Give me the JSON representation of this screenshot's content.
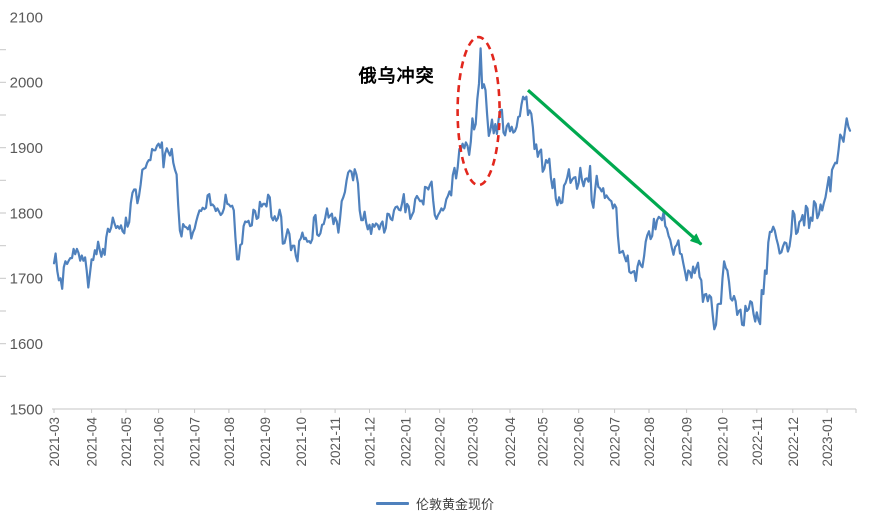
{
  "chart_data": {
    "type": "line",
    "title": "",
    "series_name": "伦敦黄金现价",
    "ylim": [
      1500,
      2100
    ],
    "y_ticks": [
      1500,
      1600,
      1700,
      1800,
      1900,
      2000,
      2100
    ],
    "x_tick_labels": [
      "2021-03",
      "2021-04",
      "2021-05",
      "2021-06",
      "2021-07",
      "2021-08",
      "2021-09",
      "2021-10",
      "2021-11",
      "2021-12",
      "2022-01",
      "2022-02",
      "2022-03",
      "2022-04",
      "2022-05",
      "2022-06",
      "2022-07",
      "2022-08",
      "2022-09",
      "2022-10",
      "2022-11",
      "2022-12",
      "2023-01"
    ],
    "line_color": "#4F81BD",
    "grid": "off",
    "legend_position": "bottom-center",
    "annotations": {
      "conflict_label": "俄乌冲突",
      "ellipse_color": "#E2271D",
      "arrow_color": "#00A94F",
      "ellipse_meaning": "red dashed ellipse around the March 2022 price spike",
      "arrow_meaning": "green arrow showing decline from April 2022 peak to September 2022 low"
    },
    "months": [
      {
        "label": "2021-03",
        "values": [
          1723,
          1738,
          1711,
          1697,
          1700,
          1684,
          1717,
          1726,
          1722,
          1727,
          1731,
          1731,
          1745,
          1737,
          1745,
          1739,
          1727,
          1735,
          1727,
          1732,
          1712,
          1686,
          1708
        ]
      },
      {
        "label": "2021-04",
        "values": [
          1729,
          1728,
          1743,
          1737,
          1756,
          1743,
          1733,
          1745,
          1736,
          1763,
          1776,
          1771,
          1778,
          1793,
          1784,
          1777,
          1780,
          1776,
          1781,
          1772,
          1769
        ]
      },
      {
        "label": "2021-05",
        "values": [
          1793,
          1779,
          1786,
          1815,
          1831,
          1836,
          1836,
          1815,
          1826,
          1843,
          1866,
          1868,
          1869,
          1877,
          1881,
          1881,
          1898,
          1896,
          1896,
          1903
        ]
      },
      {
        "label": "2021-06",
        "values": [
          1906,
          1900,
          1908,
          1870,
          1891,
          1899,
          1893,
          1888,
          1898,
          1877,
          1866,
          1859,
          1812,
          1773,
          1764,
          1783,
          1779,
          1778,
          1775,
          1781,
          1761,
          1770
        ]
      },
      {
        "label": "2021-07",
        "values": [
          1776,
          1787,
          1796,
          1804,
          1803,
          1808,
          1806,
          1808,
          1827,
          1829,
          1812,
          1813,
          1810,
          1803,
          1807,
          1802,
          1797,
          1800,
          1807,
          1828,
          1814
        ]
      },
      {
        "label": "2021-08",
        "values": [
          1813,
          1810,
          1811,
          1804,
          1763,
          1729,
          1729,
          1751,
          1753,
          1780,
          1787,
          1786,
          1788,
          1780,
          1781,
          1805,
          1803,
          1791,
          1793,
          1817,
          1810,
          1814
        ]
      },
      {
        "label": "2021-09",
        "values": [
          1814,
          1810,
          1828,
          1824,
          1794,
          1789,
          1795,
          1788,
          1792,
          1805,
          1794,
          1753,
          1754,
          1764,
          1775,
          1768,
          1743,
          1750,
          1750,
          1734,
          1726,
          1757
        ]
      },
      {
        "label": "2021-10",
        "values": [
          1761,
          1770,
          1760,
          1762,
          1756,
          1757,
          1754,
          1760,
          1793,
          1797,
          1767,
          1765,
          1769,
          1782,
          1783,
          1793,
          1807,
          1793,
          1796,
          1799,
          1783
        ]
      },
      {
        "label": "2021-11",
        "values": [
          1793,
          1787,
          1770,
          1791,
          1818,
          1824,
          1832,
          1850,
          1862,
          1865,
          1863,
          1850,
          1867,
          1859,
          1845,
          1804,
          1789,
          1789,
          1802,
          1785,
          1775
        ]
      },
      {
        "label": "2021-12",
        "values": [
          1782,
          1768,
          1783,
          1779,
          1784,
          1782,
          1775,
          1783,
          1787,
          1770,
          1777,
          1799,
          1798,
          1791,
          1789,
          1804,
          1809,
          1810,
          1805,
          1804,
          1815,
          1829
        ]
      },
      {
        "label": "2022-01",
        "values": [
          1801,
          1814,
          1810,
          1791,
          1797,
          1802,
          1821,
          1826,
          1822,
          1818,
          1819,
          1813,
          1840,
          1839,
          1836,
          1843,
          1848,
          1819,
          1797,
          1791,
          1797
        ]
      },
      {
        "label": "2022-02",
        "values": [
          1801,
          1807,
          1804,
          1808,
          1821,
          1826,
          1833,
          1827,
          1858,
          1869,
          1853,
          1870,
          1898,
          1898,
          1906,
          1899,
          1908,
          1903,
          1889,
          1909
        ]
      },
      {
        "label": "2022-03",
        "values": [
          1945,
          1928,
          1936,
          1974,
          1998,
          2052,
          1991,
          1997,
          1988,
          1951,
          1918,
          1927,
          1943,
          1922,
          1936,
          1921,
          1943,
          1957,
          1958,
          1923,
          1919,
          1933,
          1937
        ]
      },
      {
        "label": "2022-04",
        "values": [
          1925,
          1932,
          1923,
          1925,
          1932,
          1947,
          1948,
          1966,
          1978,
          1974,
          1978,
          1950,
          1957,
          1952,
          1931,
          1898,
          1905,
          1886,
          1894,
          1897
        ]
      },
      {
        "label": "2022-05",
        "values": [
          1863,
          1868,
          1881,
          1877,
          1883,
          1854,
          1838,
          1852,
          1822,
          1812,
          1824,
          1815,
          1816,
          1842,
          1846,
          1854,
          1867,
          1846,
          1851,
          1854,
          1855,
          1837
        ]
      },
      {
        "label": "2022-06",
        "values": [
          1846,
          1869,
          1851,
          1841,
          1852,
          1853,
          1848,
          1872,
          1819,
          1808,
          1834,
          1857,
          1840,
          1838,
          1833,
          1838,
          1823,
          1827,
          1823,
          1820,
          1818,
          1807
        ]
      },
      {
        "label": "2022-07",
        "values": [
          1813,
          1808,
          1765,
          1739,
          1740,
          1742,
          1734,
          1726,
          1735,
          1710,
          1708,
          1710,
          1711,
          1696,
          1718,
          1727,
          1720,
          1717,
          1734,
          1756,
          1766
        ]
      },
      {
        "label": "2022-08",
        "values": [
          1772,
          1760,
          1765,
          1791,
          1775,
          1789,
          1794,
          1792,
          1789,
          1802,
          1780,
          1776,
          1765,
          1759,
          1747,
          1736,
          1748,
          1751,
          1758,
          1738,
          1737,
          1723,
          1711
        ]
      },
      {
        "label": "2022-09",
        "values": [
          1697,
          1712,
          1710,
          1701,
          1718,
          1708,
          1717,
          1724,
          1702,
          1697,
          1664,
          1675,
          1676,
          1665,
          1674,
          1671,
          1644,
          1622,
          1629,
          1660,
          1661,
          1661
        ]
      },
      {
        "label": "2022-10",
        "values": [
          1700,
          1726,
          1716,
          1712,
          1695,
          1669,
          1666,
          1673,
          1665,
          1644,
          1650,
          1652,
          1629,
          1628,
          1658,
          1650,
          1653,
          1665,
          1663,
          1645,
          1634
        ]
      },
      {
        "label": "2022-11",
        "values": [
          1648,
          1636,
          1630,
          1682,
          1676,
          1712,
          1707,
          1755,
          1771,
          1771,
          1779,
          1773,
          1761,
          1751,
          1738,
          1740,
          1749,
          1755,
          1754,
          1741,
          1749,
          1768
        ]
      },
      {
        "label": "2022-12",
        "values": [
          1803,
          1798,
          1768,
          1771,
          1786,
          1789,
          1797,
          1781,
          1811,
          1807,
          1777,
          1793,
          1788,
          1818,
          1814,
          1792,
          1798,
          1813,
          1804,
          1815,
          1824
        ]
      },
      {
        "label": "2023-01",
        "values": [
          1839,
          1855,
          1833,
          1866,
          1872,
          1877,
          1876,
          1897,
          1920,
          1916,
          1909,
          1928,
          1945,
          1932,
          1926
        ]
      }
    ]
  },
  "legend": {
    "label": "伦敦黄金现价"
  }
}
